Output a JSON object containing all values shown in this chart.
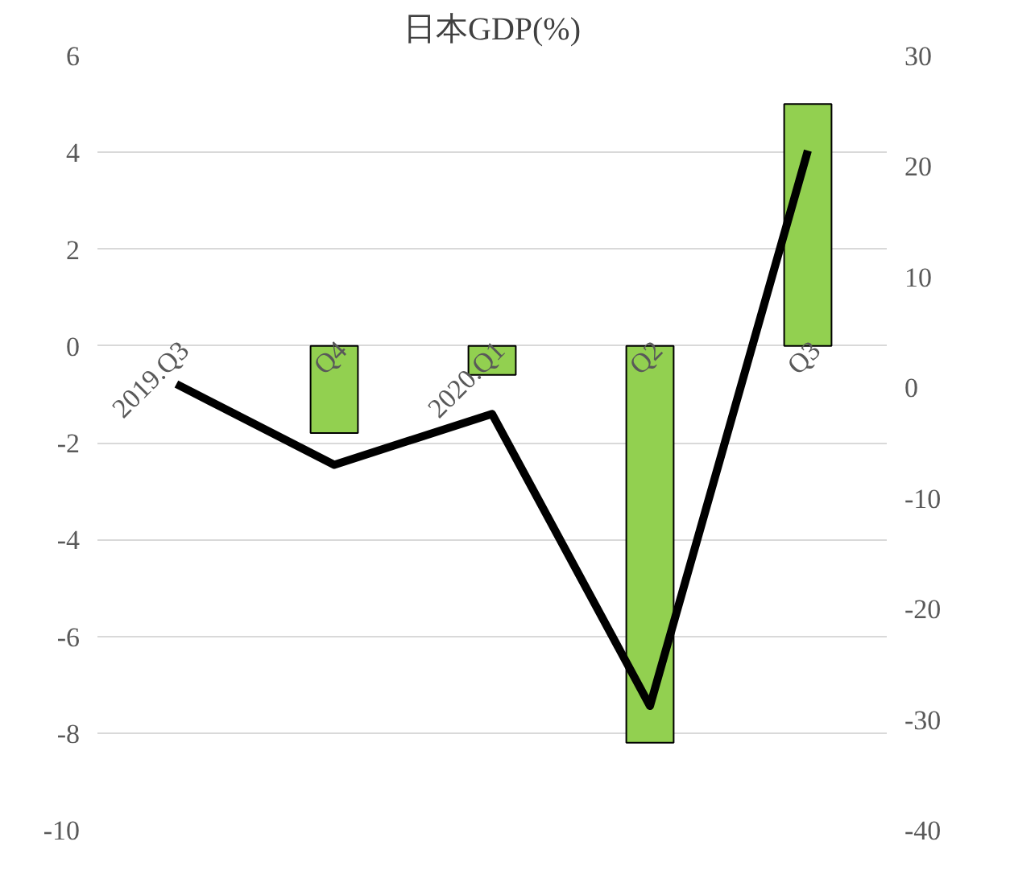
{
  "chart_data": {
    "type": "bar",
    "title": "日本GDP(%)",
    "categories": [
      "2019.Q3",
      "Q4",
      "2020.Q1",
      "Q2",
      "Q3"
    ],
    "series": [
      {
        "color": "#92d050",
        "values": [
          null,
          -1.8,
          -0.6,
          -8.2,
          5.0
        ]
      },
      {
        "type": "line",
        "axis": "y2",
        "color": "#000000",
        "values": [
          0.3,
          -7.0,
          -2.4,
          -28.8,
          21.4
        ]
      }
    ],
    "ylim": [
      -10,
      6
    ],
    "yticks": [
      -10,
      -8,
      -6,
      -4,
      -2,
      0,
      2,
      4,
      6
    ],
    "y2lim": [
      -40,
      30
    ],
    "y2ticks": [
      -40,
      -30,
      -20,
      -10,
      0,
      10,
      20,
      30
    ],
    "grid": "y",
    "marker": "none",
    "line_style": "solid"
  }
}
